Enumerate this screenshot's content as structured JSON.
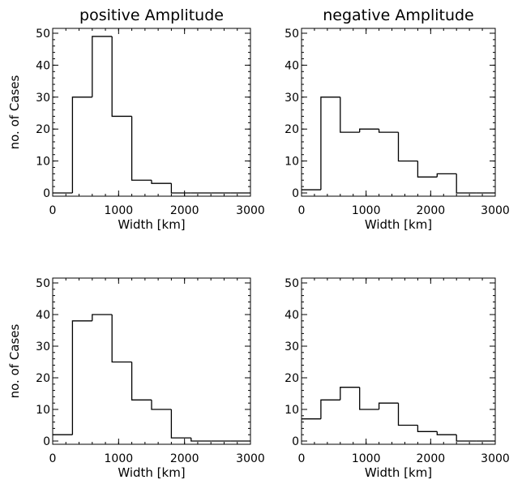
{
  "chart_data": [
    {
      "type": "histogram",
      "title": "positive Amplitude",
      "xlabel": "Width [km]",
      "ylabel": "no. of Cases",
      "xlim": [
        0,
        3000
      ],
      "ylim": [
        0,
        50
      ],
      "bin_width": 300,
      "x": [
        0,
        300,
        600,
        900,
        1200,
        1500,
        1800,
        2100,
        2400,
        2700
      ],
      "values": [
        0,
        30,
        49,
        24,
        4,
        3,
        0,
        0,
        0,
        0
      ],
      "xticks": [
        "0",
        "1000",
        "2000",
        "3000"
      ],
      "yticks": [
        "0",
        "10",
        "20",
        "30",
        "40",
        "50"
      ]
    },
    {
      "type": "histogram",
      "title": "negative Amplitude",
      "xlabel": "Width [km]",
      "ylabel": "",
      "xlim": [
        0,
        3000
      ],
      "ylim": [
        0,
        50
      ],
      "bin_width": 300,
      "x": [
        0,
        300,
        600,
        900,
        1200,
        1500,
        1800,
        2100,
        2400,
        2700
      ],
      "values": [
        1,
        30,
        19,
        20,
        19,
        10,
        5,
        6,
        0,
        0
      ],
      "xticks": [
        "0",
        "1000",
        "2000",
        "3000"
      ],
      "yticks": [
        "0",
        "10",
        "20",
        "30",
        "40",
        "50"
      ]
    },
    {
      "type": "histogram",
      "title": "",
      "xlabel": "Width [km]",
      "ylabel": "no. of Cases",
      "xlim": [
        0,
        3000
      ],
      "ylim": [
        0,
        50
      ],
      "bin_width": 300,
      "x": [
        0,
        300,
        600,
        900,
        1200,
        1500,
        1800,
        2100,
        2400,
        2700
      ],
      "values": [
        2,
        38,
        40,
        25,
        13,
        10,
        1,
        0,
        0,
        0
      ],
      "xticks": [
        "0",
        "1000",
        "2000",
        "3000"
      ],
      "yticks": [
        "0",
        "10",
        "20",
        "30",
        "40",
        "50"
      ]
    },
    {
      "type": "histogram",
      "title": "",
      "xlabel": "Width [km]",
      "ylabel": "",
      "xlim": [
        0,
        3000
      ],
      "ylim": [
        0,
        50
      ],
      "bin_width": 300,
      "x": [
        0,
        300,
        600,
        900,
        1200,
        1500,
        1800,
        2100,
        2400,
        2700
      ],
      "values": [
        7,
        13,
        17,
        10,
        12,
        5,
        3,
        2,
        0,
        0
      ],
      "xticks": [
        "0",
        "1000",
        "2000",
        "3000"
      ],
      "yticks": [
        "0",
        "10",
        "20",
        "30",
        "40",
        "50"
      ]
    }
  ]
}
